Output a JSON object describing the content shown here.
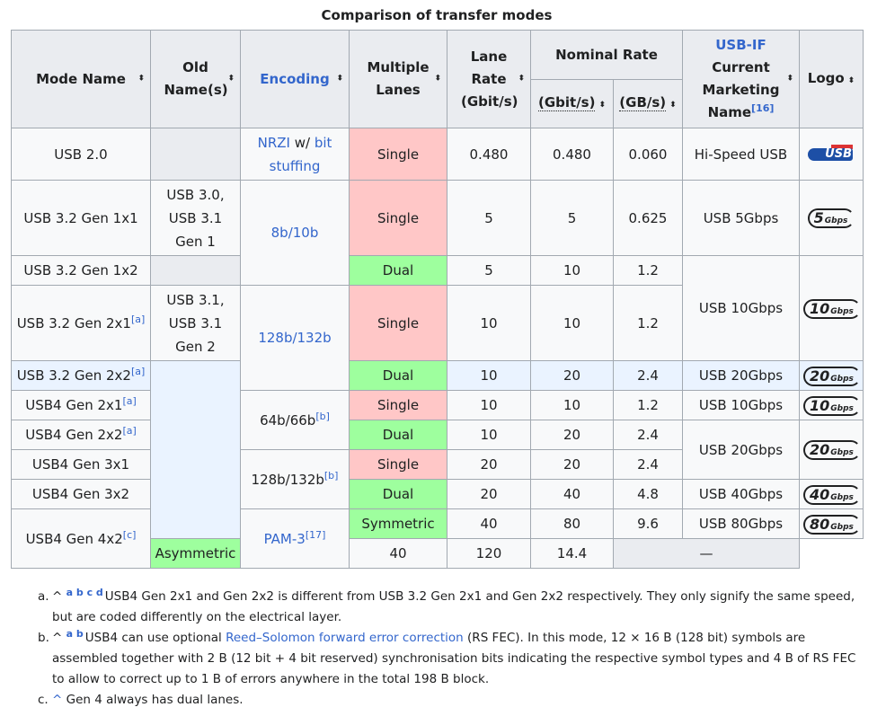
{
  "caption": "Comparison of transfer modes",
  "headers": {
    "mode": "Mode Name",
    "old": "Old Name(s)",
    "encoding": "Encoding",
    "lanes": "Multiple Lanes",
    "lane_rate": "Lane Rate (Gbit/s)",
    "nominal": "Nominal Rate",
    "gbit": "(Gbit/s)",
    "gbyte": "(GB/s)",
    "marketing_link": "USB-IF",
    "marketing_rest": "Current Marketing Name",
    "marketing_ref": "[16]",
    "logo": "Logo",
    "sort_glyph": "⬍"
  },
  "rows": [
    {
      "mode": "USB 2.0",
      "old": "",
      "enc_a": "NRZI",
      "enc_b": " w/ ",
      "enc_c": "bit stuffing",
      "lanes": "Single",
      "lane_rate": "0.480",
      "gbit": "0.480",
      "gbyte": "0.060",
      "mkt": "Hi-Speed USB",
      "logo_text": "USB",
      "logo_tag": "HI-SPEED"
    },
    {
      "mode": "USB 3.2 Gen 1x1",
      "old": "USB 3.0, USB 3.1 Gen 1",
      "enc": "8b/10b",
      "lanes": "Single",
      "lane_rate": "5",
      "gbit": "5",
      "gbyte": "0.625",
      "mkt": "USB 5Gbps",
      "logo_n": "5",
      "logo_u": "Gbps"
    },
    {
      "mode": "USB 3.2 Gen 1x2",
      "old": "",
      "lanes": "Dual",
      "lane_rate": "5",
      "gbit": "10",
      "gbyte": "1.2",
      "mkt": "USB 10Gbps",
      "logo_n": "10",
      "logo_u": "Gbps"
    },
    {
      "mode": "USB 3.2 Gen 2x1",
      "ref": "[a]",
      "old": "USB 3.1, USB 3.1 Gen 2",
      "enc": "128b/132b",
      "lanes": "Single",
      "lane_rate": "10",
      "gbit": "10",
      "gbyte": "1.2"
    },
    {
      "mode": "USB 3.2 Gen 2x2",
      "ref": "[a]",
      "lanes": "Dual",
      "lane_rate": "10",
      "gbit": "20",
      "gbyte": "2.4",
      "mkt": "USB 20Gbps",
      "logo_n": "20",
      "logo_u": "Gbps"
    },
    {
      "mode": "USB4 Gen 2x1",
      "ref": "[a]",
      "enc": "64b/66b",
      "enc_ref": "[b]",
      "lanes": "Single",
      "lane_rate": "10",
      "gbit": "10",
      "gbyte": "1.2",
      "mkt": "USB 10Gbps",
      "logo_n": "10",
      "logo_u": "Gbps"
    },
    {
      "mode": "USB4 Gen 2x2",
      "ref": "[a]",
      "lanes": "Dual",
      "lane_rate": "10",
      "gbit": "20",
      "gbyte": "2.4",
      "mkt": "USB 20Gbps",
      "logo_n": "20",
      "logo_u": "Gbps"
    },
    {
      "mode": "USB4 Gen 3x1",
      "enc": "128b/132b",
      "enc_ref": "[b]",
      "lanes": "Single",
      "lane_rate": "20",
      "gbit": "20",
      "gbyte": "2.4"
    },
    {
      "mode": "USB4 Gen 3x2",
      "lanes": "Dual",
      "lane_rate": "20",
      "gbit": "40",
      "gbyte": "4.8",
      "mkt": "USB 40Gbps",
      "logo_n": "40",
      "logo_u": "Gbps"
    },
    {
      "mode": "USB4 Gen 4x2",
      "ref": "[c]",
      "enc": "PAM-3",
      "enc_ref": "[17]",
      "lanes": "Symmetric",
      "lane_rate": "40",
      "gbit": "80",
      "gbyte": "9.6",
      "mkt": "USB 80Gbps",
      "logo_n": "80",
      "logo_u": "Gbps"
    },
    {
      "lanes": "Asymmetric",
      "lane_rate": "40",
      "gbit": "120",
      "gbyte": "14.4",
      "mkt": "—"
    }
  ],
  "notes": [
    {
      "marker": "a.",
      "back": "^",
      "letters": "a b c d",
      "text": "USB4 Gen 2x1 and Gen 2x2 is different from USB 3.2 Gen 2x1 and Gen 2x2 respectively. They only signify the same speed, but are coded differently on the electrical layer."
    },
    {
      "marker": "b.",
      "back": "^",
      "letters": "a b",
      "pre": "USB4 can use optional ",
      "link": "Reed–Solomon forward error correction",
      "post": " (RS FEC). In this mode, 12 × 16 B (128 bit) symbols are assembled together with 2 B (12 bit + 4 bit reserved) synchronisation bits indicating the respective symbol types and 4 B of RS FEC to allow to correct up to 1 B of errors anywhere in the total 198 B block."
    },
    {
      "marker": "c.",
      "back": "^",
      "text": "Gen 4 always has dual lanes."
    }
  ],
  "colors": {
    "single": "#ffc7c7",
    "dual": "#9eff9e",
    "link": "#3366cc",
    "header": "#eaecf0",
    "border": "#a2a9b1"
  }
}
